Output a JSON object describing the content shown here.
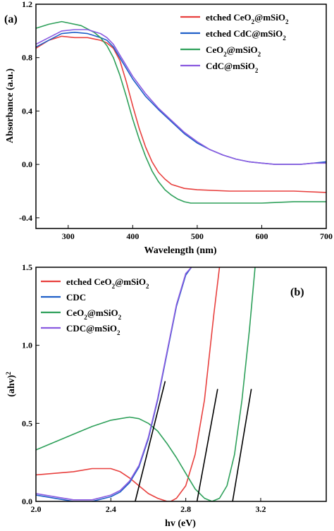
{
  "chart_data": [
    {
      "type": "line",
      "panel_label": "(a)",
      "xlabel": "Wavelength (nm)",
      "ylabel": "Absorbance (a.u.)",
      "xlim": [
        250,
        700
      ],
      "ylim": [
        -0.48,
        1.2
      ],
      "xticks": [
        300,
        400,
        500,
        600,
        700
      ],
      "xtick_labels": [
        "300",
        "400",
        "500",
        "600",
        "700"
      ],
      "yticks": [
        -0.4,
        0.0,
        0.4,
        0.8,
        1.2
      ],
      "ytick_labels": [
        "-0.4",
        "0.0",
        "0.4",
        "0.8",
        "1.2"
      ],
      "legend_position": "top-right",
      "series": [
        {
          "name": "etched CeO2@mSiO2",
          "label_parts": [
            [
              "etched CeO",
              false
            ],
            [
              "2",
              true
            ],
            [
              "@mSiO",
              false
            ],
            [
              "2",
              true
            ]
          ],
          "color": "#e8403e",
          "x": [
            250,
            270,
            290,
            310,
            330,
            350,
            360,
            370,
            380,
            390,
            400,
            410,
            420,
            430,
            440,
            450,
            460,
            480,
            500,
            550,
            600,
            650,
            700
          ],
          "y": [
            0.87,
            0.93,
            0.96,
            0.95,
            0.95,
            0.93,
            0.91,
            0.87,
            0.78,
            0.62,
            0.44,
            0.27,
            0.13,
            0.02,
            -0.06,
            -0.11,
            -0.15,
            -0.18,
            -0.19,
            -0.2,
            -0.2,
            -0.2,
            -0.21
          ]
        },
        {
          "name": "etched CdC@mSiO2",
          "label_parts": [
            [
              "etched CdC@mSiO",
              false
            ],
            [
              "2",
              true
            ]
          ],
          "color": "#1f5fc8",
          "x": [
            250,
            270,
            290,
            310,
            330,
            350,
            360,
            370,
            380,
            400,
            420,
            440,
            460,
            480,
            500,
            520,
            540,
            560,
            580,
            600,
            620,
            640,
            660,
            680,
            700
          ],
          "y": [
            0.88,
            0.93,
            0.98,
            0.99,
            0.98,
            0.95,
            0.93,
            0.88,
            0.8,
            0.64,
            0.51,
            0.41,
            0.32,
            0.23,
            0.16,
            0.11,
            0.07,
            0.04,
            0.02,
            0.01,
            0.0,
            0.0,
            0.0,
            0.01,
            0.02
          ]
        },
        {
          "name": "CeO2@mSiO2",
          "label_parts": [
            [
              "CeO",
              false
            ],
            [
              "2",
              true
            ],
            [
              "@mSiO",
              false
            ],
            [
              "2",
              true
            ]
          ],
          "color": "#2ea05a",
          "x": [
            250,
            270,
            290,
            300,
            320,
            340,
            350,
            360,
            370,
            380,
            390,
            400,
            410,
            420,
            430,
            440,
            450,
            460,
            470,
            480,
            490,
            500,
            520,
            550,
            600,
            650,
            700
          ],
          "y": [
            1.02,
            1.05,
            1.07,
            1.06,
            1.04,
            0.99,
            0.95,
            0.89,
            0.8,
            0.67,
            0.51,
            0.34,
            0.19,
            0.06,
            -0.05,
            -0.13,
            -0.19,
            -0.23,
            -0.26,
            -0.28,
            -0.29,
            -0.29,
            -0.29,
            -0.29,
            -0.29,
            -0.28,
            -0.28
          ]
        },
        {
          "name": "CdC@mSiO2",
          "label_parts": [
            [
              "CdC@mSiO",
              false
            ],
            [
              "2",
              true
            ]
          ],
          "color": "#8a5ae0",
          "x": [
            250,
            270,
            290,
            310,
            330,
            350,
            360,
            370,
            380,
            400,
            420,
            440,
            460,
            480,
            500,
            520,
            540,
            560,
            580,
            600,
            620,
            640,
            660,
            680,
            700
          ],
          "y": [
            0.9,
            0.95,
            1.0,
            1.01,
            1.01,
            0.98,
            0.95,
            0.9,
            0.82,
            0.66,
            0.53,
            0.42,
            0.33,
            0.24,
            0.17,
            0.11,
            0.07,
            0.04,
            0.02,
            0.01,
            0.0,
            0.0,
            0.0,
            0.01,
            0.01
          ]
        }
      ]
    },
    {
      "type": "line",
      "panel_label": "(b)",
      "xlabel": "hv (eV)",
      "ylabel_parts": [
        [
          "(ahv)",
          false
        ],
        [
          "2",
          "sup"
        ]
      ],
      "xlim": [
        2.0,
        3.55
      ],
      "ylim": [
        0.0,
        1.5
      ],
      "xticks": [
        2.0,
        2.4,
        2.8,
        3.2
      ],
      "xtick_labels": [
        "2.0",
        "2.4",
        "2.8",
        "3.2"
      ],
      "yticks": [
        0.0,
        0.5,
        1.0,
        1.5
      ],
      "ytick_labels": [
        "0.0",
        "0.5",
        "1.0",
        "1.5"
      ],
      "legend_position": "top-left",
      "series": [
        {
          "name": "etched CeO2@mSiO2",
          "label_parts": [
            [
              "etched CeO",
              false
            ],
            [
              "2",
              true
            ],
            [
              "@mSiO",
              false
            ],
            [
              "2",
              true
            ]
          ],
          "color": "#e8403e",
          "x": [
            2.0,
            2.1,
            2.2,
            2.3,
            2.35,
            2.4,
            2.45,
            2.5,
            2.55,
            2.6,
            2.65,
            2.7,
            2.72,
            2.75,
            2.8,
            2.85,
            2.9,
            2.95,
            2.98
          ],
          "y": [
            0.17,
            0.18,
            0.19,
            0.21,
            0.21,
            0.21,
            0.19,
            0.15,
            0.1,
            0.05,
            0.02,
            0.0,
            0.0,
            0.02,
            0.1,
            0.3,
            0.65,
            1.2,
            1.5
          ]
        },
        {
          "name": "CDC",
          "label_parts": [
            [
              "CDC",
              false
            ]
          ],
          "color": "#1f5fc8",
          "x": [
            2.0,
            2.1,
            2.2,
            2.3,
            2.4,
            2.45,
            2.5,
            2.55,
            2.6,
            2.65,
            2.7,
            2.75,
            2.8,
            2.83
          ],
          "y": [
            0.04,
            0.02,
            0.0,
            0.0,
            0.03,
            0.06,
            0.12,
            0.22,
            0.4,
            0.65,
            0.95,
            1.25,
            1.45,
            1.5
          ]
        },
        {
          "name": "CeO2@mSiO2",
          "label_parts": [
            [
              "CeO",
              false
            ],
            [
              "2",
              true
            ],
            [
              "@mSiO",
              false
            ],
            [
              "2",
              true
            ]
          ],
          "color": "#2ea05a",
          "x": [
            2.0,
            2.1,
            2.2,
            2.3,
            2.4,
            2.45,
            2.5,
            2.55,
            2.6,
            2.65,
            2.7,
            2.75,
            2.8,
            2.85,
            2.9,
            2.94,
            2.98,
            3.02,
            3.06,
            3.1,
            3.14,
            3.17
          ],
          "y": [
            0.33,
            0.38,
            0.43,
            0.48,
            0.52,
            0.53,
            0.54,
            0.53,
            0.5,
            0.45,
            0.37,
            0.28,
            0.18,
            0.08,
            0.02,
            0.0,
            0.02,
            0.1,
            0.3,
            0.65,
            1.1,
            1.5
          ]
        },
        {
          "name": "CDC@mSiO2",
          "label_parts": [
            [
              "CDC@mSiO",
              false
            ],
            [
              "2",
              true
            ]
          ],
          "color": "#8a5ae0",
          "x": [
            2.0,
            2.1,
            2.2,
            2.3,
            2.4,
            2.45,
            2.5,
            2.55,
            2.6,
            2.65,
            2.7,
            2.75,
            2.8,
            2.83
          ],
          "y": [
            0.05,
            0.03,
            0.01,
            0.01,
            0.04,
            0.07,
            0.13,
            0.23,
            0.41,
            0.66,
            0.96,
            1.26,
            1.46,
            1.5
          ]
        }
      ],
      "tangent_lines": [
        {
          "x": [
            2.53,
            2.69
          ],
          "y": [
            0.0,
            0.77
          ],
          "color": "#000000"
        },
        {
          "x": [
            2.86,
            2.97
          ],
          "y": [
            0.0,
            0.72
          ],
          "color": "#000000"
        },
        {
          "x": [
            3.05,
            3.15
          ],
          "y": [
            0.0,
            0.72
          ],
          "color": "#000000"
        }
      ]
    }
  ]
}
